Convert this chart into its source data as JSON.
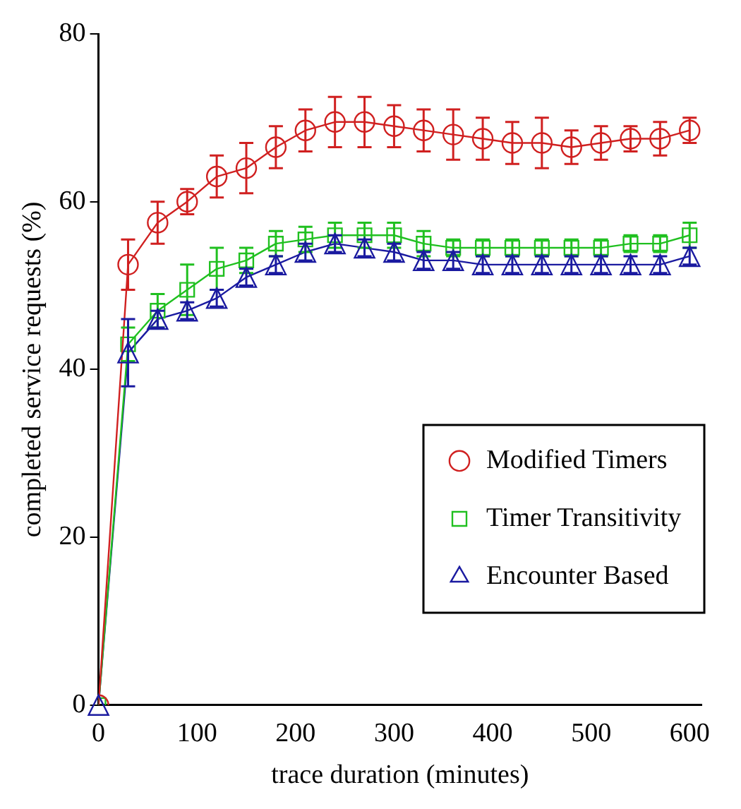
{
  "chart_data": {
    "type": "line",
    "xlabel": "trace duration (minutes)",
    "ylabel": "completed service requests (%)",
    "x": [
      0,
      30,
      60,
      90,
      120,
      150,
      180,
      210,
      240,
      270,
      300,
      330,
      360,
      390,
      420,
      450,
      480,
      510,
      540,
      570,
      600
    ],
    "xlim": [
      0,
      612
    ],
    "xticks": [
      0,
      100,
      200,
      300,
      400,
      500,
      600
    ],
    "ylim": [
      0,
      80
    ],
    "yticks": [
      0,
      20,
      40,
      60,
      80
    ],
    "grid": false,
    "legend": "right",
    "line_style": "solid",
    "series": [
      {
        "name": "Modified Timers",
        "color": "#d02020",
        "marker": "circle",
        "values": [
          0,
          52.5,
          57.5,
          60,
          63,
          64,
          66.5,
          68.5,
          69.5,
          69.5,
          69,
          68.5,
          68,
          67.5,
          67,
          67,
          66.5,
          67,
          67.5,
          67.5,
          68.5
        ],
        "errors": [
          null,
          3,
          2.5,
          1.5,
          2.5,
          3,
          2.5,
          2.5,
          3,
          3,
          2.5,
          2.5,
          3,
          2.5,
          2.5,
          3,
          2,
          2,
          1.5,
          2,
          1.5
        ]
      },
      {
        "name": "Timer Transitivity",
        "color": "#20c020",
        "marker": "square",
        "values": [
          0,
          43,
          47,
          49.5,
          52,
          53,
          55,
          55.5,
          56,
          56,
          56,
          55,
          54.5,
          54.5,
          54.5,
          54.5,
          54.5,
          54.5,
          55,
          55,
          56
        ],
        "errors": [
          null,
          2,
          2,
          3,
          2.5,
          1.5,
          1.5,
          1.5,
          1.5,
          1.5,
          1.5,
          1.5,
          1,
          1,
          1,
          1,
          1,
          1,
          1,
          1,
          1.5
        ]
      },
      {
        "name": "Encounter Based",
        "color": "#1a1aa0",
        "marker": "triangle",
        "values": [
          0,
          42,
          46,
          47,
          48.5,
          51,
          52.5,
          54,
          55,
          54.5,
          54,
          53,
          53,
          52.5,
          52.5,
          52.5,
          52.5,
          52.5,
          52.5,
          52.5,
          53.5
        ],
        "errors": [
          null,
          4,
          1,
          1,
          1,
          1,
          1,
          1,
          1,
          1,
          1,
          1,
          1,
          1,
          1,
          1,
          1,
          1,
          1,
          1,
          1
        ]
      }
    ]
  }
}
